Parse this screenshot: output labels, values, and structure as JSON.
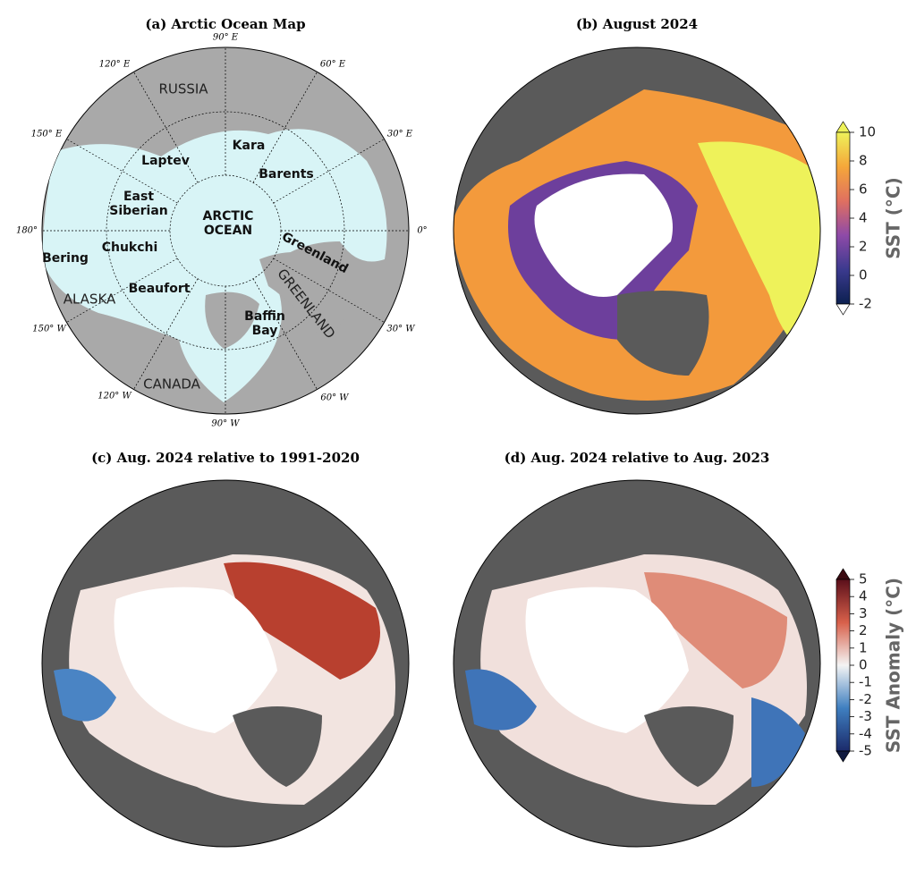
{
  "panels": [
    {
      "title": "(a) Arctic Ocean Map",
      "longitude_labels": [
        "90° E",
        "60° E",
        "30° E",
        "0°",
        "30° W",
        "60° W",
        "90° W",
        "120° W",
        "150° W",
        "180°",
        "150° E",
        "120° E"
      ],
      "region_labels": [
        "RUSSIA",
        "ALASKA",
        "CANADA",
        "GREENLAND"
      ],
      "sea_labels": [
        {
          "lines": [
            "Kara"
          ]
        },
        {
          "lines": [
            "Barents"
          ]
        },
        {
          "lines": [
            "Laptev"
          ]
        },
        {
          "lines": [
            "East",
            "Siberian"
          ]
        },
        {
          "lines": [
            "ARCTIC",
            "OCEAN"
          ]
        },
        {
          "lines": [
            "Chukchi"
          ]
        },
        {
          "lines": [
            "Bering"
          ]
        },
        {
          "lines": [
            "Beaufort"
          ]
        },
        {
          "lines": [
            "Greenland"
          ]
        },
        {
          "lines": [
            "Baffin",
            "Bay"
          ]
        }
      ]
    },
    {
      "title": "(b) August 2024"
    },
    {
      "title": "(c) Aug. 2024 relative to 1991-2020"
    },
    {
      "title": "(d) Aug. 2024 relative to Aug. 2023"
    }
  ],
  "colorbars": [
    {
      "label": "SST (°C)",
      "lim": [
        -2,
        10
      ],
      "ticks": [
        -2,
        0,
        2,
        4,
        6,
        8,
        10
      ]
    },
    {
      "label": "SST Anomaly (°C)",
      "lim": [
        -5,
        5
      ],
      "ticks": [
        -5,
        -4,
        -3,
        -2,
        -1,
        0,
        1,
        2,
        3,
        4,
        5
      ]
    }
  ]
}
